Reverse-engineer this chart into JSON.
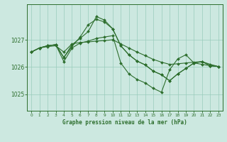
{
  "bg_color": "#cce8e0",
  "grid_color": "#99ccbb",
  "line_color": "#2d6e2d",
  "marker_color": "#2d6e2d",
  "xlabel": "Graphe pression niveau de la mer (hPa)",
  "ylim": [
    1024.4,
    1028.3
  ],
  "xlim": [
    -0.5,
    23.5
  ],
  "yticks": [
    1025,
    1026,
    1027
  ],
  "xticks": [
    0,
    1,
    2,
    3,
    4,
    5,
    6,
    7,
    8,
    9,
    10,
    11,
    12,
    13,
    14,
    15,
    16,
    17,
    18,
    19,
    20,
    21,
    22,
    23
  ],
  "series1": [
    1026.55,
    1026.7,
    1026.75,
    1026.78,
    1026.55,
    1026.85,
    1026.9,
    1026.92,
    1026.95,
    1026.97,
    1027.0,
    1026.85,
    1026.7,
    1026.55,
    1026.42,
    1026.28,
    1026.18,
    1026.1,
    1026.12,
    1026.15,
    1026.18,
    1026.2,
    1026.1,
    1026.02
  ],
  "series2": [
    1026.55,
    1026.7,
    1026.78,
    1026.82,
    1026.35,
    1026.75,
    1027.1,
    1027.55,
    1027.75,
    1027.65,
    1027.4,
    1026.78,
    1026.45,
    1026.22,
    1026.08,
    1025.85,
    1025.72,
    1025.5,
    1025.75,
    1025.95,
    1026.15,
    1026.2,
    1026.05,
    1026.02
  ],
  "series3": [
    1026.55,
    1026.7,
    1026.78,
    1026.82,
    1026.35,
    1026.82,
    1027.05,
    1027.3,
    1027.85,
    1027.72,
    1027.4,
    1026.78,
    1026.45,
    1026.22,
    1026.08,
    1025.85,
    1025.72,
    1025.5,
    1025.75,
    1025.95,
    1026.15,
    1026.2,
    1026.05,
    1026.02
  ],
  "series4": [
    1026.55,
    1026.7,
    1026.78,
    1026.82,
    1026.2,
    1026.7,
    1026.88,
    1026.95,
    1027.05,
    1027.1,
    1027.15,
    1026.15,
    1025.75,
    1025.55,
    1025.42,
    1025.22,
    1025.08,
    1025.9,
    1026.3,
    1026.45,
    1026.15,
    1026.1,
    1026.05,
    1026.02
  ]
}
